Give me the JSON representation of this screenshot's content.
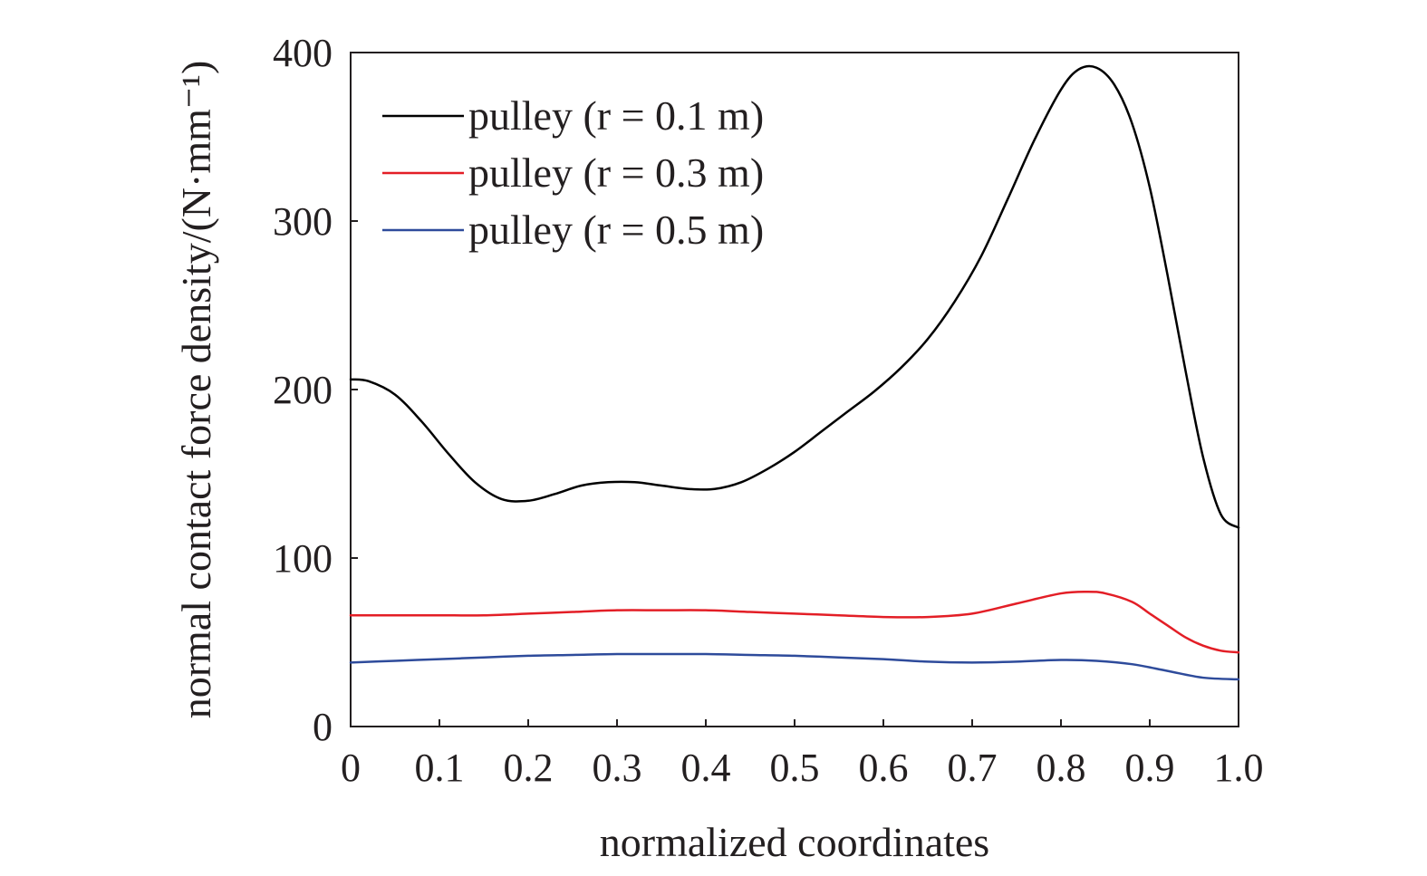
{
  "chart_data": {
    "type": "line",
    "xlabel": "normalized coordinates",
    "ylabel": "normal contact force density/(N·mm⁻¹)",
    "xlim": [
      0,
      1.0
    ],
    "ylim": [
      0,
      400
    ],
    "x_ticks": [
      "0",
      "0.1",
      "0.2",
      "0.3",
      "0.4",
      "0.5",
      "0.6",
      "0.7",
      "0.8",
      "0.9",
      "1.0"
    ],
    "y_ticks": [
      "0",
      "100",
      "200",
      "300",
      "400"
    ],
    "grid": false,
    "legend_position": "top-left",
    "series": [
      {
        "name": "pulley (r = 0.1 m)",
        "color": "#000000",
        "x": [
          0,
          0.02,
          0.05,
          0.08,
          0.11,
          0.14,
          0.17,
          0.2,
          0.23,
          0.26,
          0.29,
          0.32,
          0.35,
          0.38,
          0.41,
          0.44,
          0.47,
          0.5,
          0.53,
          0.56,
          0.59,
          0.62,
          0.65,
          0.68,
          0.71,
          0.74,
          0.77,
          0.8,
          0.82,
          0.84,
          0.86,
          0.88,
          0.9,
          0.92,
          0.94,
          0.96,
          0.98,
          1.0
        ],
        "y": [
          206,
          205,
          197,
          181,
          162,
          145,
          135,
          134,
          138,
          143,
          145,
          145,
          143,
          141,
          141,
          145,
          153,
          163,
          175,
          187,
          199,
          213,
          230,
          252,
          279,
          313,
          348,
          378,
          390,
          391,
          381,
          358,
          320,
          268,
          212,
          160,
          126,
          118
        ]
      },
      {
        "name": "pulley (r = 0.3 m)",
        "color": "#e31e26",
        "x": [
          0,
          0.05,
          0.1,
          0.15,
          0.2,
          0.25,
          0.3,
          0.35,
          0.4,
          0.45,
          0.5,
          0.55,
          0.6,
          0.65,
          0.7,
          0.75,
          0.8,
          0.83,
          0.85,
          0.88,
          0.9,
          0.92,
          0.94,
          0.96,
          0.98,
          1.0
        ],
        "y": [
          66,
          66,
          66,
          66,
          67,
          68,
          69,
          69,
          69,
          68,
          67,
          66,
          65,
          65,
          67,
          73,
          79,
          80,
          79,
          74,
          67,
          60,
          53,
          48,
          45,
          44
        ]
      },
      {
        "name": "pulley (r = 0.5 m)",
        "color": "#2e4b9b",
        "x": [
          0,
          0.05,
          0.1,
          0.15,
          0.2,
          0.25,
          0.3,
          0.35,
          0.4,
          0.45,
          0.5,
          0.55,
          0.6,
          0.65,
          0.7,
          0.75,
          0.8,
          0.84,
          0.88,
          0.92,
          0.96,
          1.0
        ],
        "y": [
          38,
          39,
          40,
          41,
          42,
          42.5,
          43,
          43,
          43,
          42.5,
          42,
          41,
          40,
          38.5,
          38,
          38.5,
          39.5,
          39,
          37,
          33,
          29,
          28
        ]
      }
    ]
  }
}
